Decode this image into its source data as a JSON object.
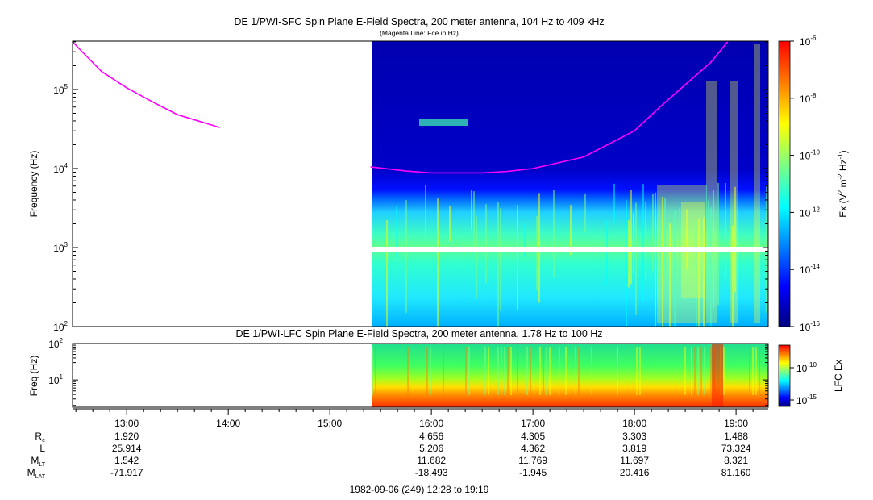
{
  "top_panel": {
    "title": "DE 1/PWI-SFC  Spin Plane E-Field Spectra, 200 meter antenna, 104 Hz to 409 kHz",
    "subtitle": "(Magenta Line: Fce in Hz)",
    "ylabel": "Frequency (Hz)",
    "yticks": [
      {
        "base": "10",
        "exp": "2"
      },
      {
        "base": "10",
        "exp": "3"
      },
      {
        "base": "10",
        "exp": "4"
      },
      {
        "base": "10",
        "exp": "5"
      }
    ],
    "colorbar": {
      "label_prefix": "Ex (V",
      "label_exp1": "2",
      "label_mid": " m",
      "label_exp2": "-2",
      "label_mid2": " Hz",
      "label_exp3": "-1",
      "label_suffix": ")",
      "ticks": [
        {
          "base": "10",
          "exp": "-6"
        },
        {
          "base": "10",
          "exp": "-8"
        },
        {
          "base": "10",
          "exp": "-10"
        },
        {
          "base": "10",
          "exp": "-12"
        },
        {
          "base": "10",
          "exp": "-14"
        },
        {
          "base": "10",
          "exp": "-16"
        }
      ]
    }
  },
  "bottom_panel": {
    "title": "DE 1/PWI-LFC  Spin Plane E-Field Spectra, 200 meter antenna, 1.78 Hz to 100 Hz",
    "ylabel": "Freq (Hz)",
    "yticks": [
      {
        "base": "10",
        "exp": "1"
      },
      {
        "base": "10",
        "exp": "2"
      }
    ],
    "colorbar": {
      "label": "LFC Ex",
      "ticks": [
        {
          "base": "10",
          "exp": "-10"
        },
        {
          "base": "10",
          "exp": "-15"
        }
      ]
    }
  },
  "time_axis": {
    "labels": [
      "13:00",
      "14:00",
      "15:00",
      "16:00",
      "17:00",
      "18:00",
      "19:00"
    ]
  },
  "ephemeris": {
    "rows": [
      {
        "name": "R",
        "sub": "e",
        "values": [
          "1.920",
          "",
          "",
          "4.656",
          "4.305",
          "3.303",
          "1.488"
        ]
      },
      {
        "name": "L",
        "sub": "",
        "values": [
          "25.914",
          "",
          "",
          "5.206",
          "4.362",
          "3.819",
          "73.324"
        ]
      },
      {
        "name": "M",
        "sub": "LT",
        "values": [
          "1.542",
          "",
          "",
          "11.682",
          "11.769",
          "11.697",
          "8.321"
        ]
      },
      {
        "name": "M",
        "sub": "LAT",
        "values": [
          "-71.917",
          "",
          "",
          "-18.493",
          "-1.945",
          "20.416",
          "81.160"
        ]
      }
    ]
  },
  "footer": "1982-09-06 (249) 12:28 to 19:19",
  "colors": {
    "fce_line": "#ff00ff",
    "colormap": [
      "#00007f",
      "#0000ff",
      "#0080ff",
      "#00ffff",
      "#80ff80",
      "#ffff00",
      "#ff8000",
      "#ff0000"
    ]
  },
  "chart_data": [
    {
      "type": "heatmap",
      "title": "DE 1/PWI-SFC  Spin Plane E-Field Spectra, 200 meter antenna, 104 Hz to 409 kHz",
      "subtitle": "(Magenta Line: Fce in Hz)",
      "xlabel": "",
      "ylabel": "Frequency (Hz)",
      "y_scale": "log",
      "ylim": [
        100,
        409000
      ],
      "xlim": [
        "12:28",
        "19:19"
      ],
      "data_start": "15:24",
      "zlabel": "Ex (V^2 m^-2 Hz^-1)",
      "z_scale": "log",
      "zlim": [
        1e-16,
        1e-06
      ],
      "series": [
        {
          "name": "Fce",
          "times": [
            "12:28",
            "12:45",
            "13:00",
            "13:15",
            "13:30",
            "13:55",
            "15:24",
            "15:45",
            "16:00",
            "16:30",
            "16:45",
            "17:00",
            "17:30",
            "18:00",
            "18:15",
            "18:30",
            "18:45",
            "18:55"
          ],
          "values": [
            400000,
            170000,
            105000,
            70000,
            48000,
            33000,
            10500,
            9300,
            8800,
            8800,
            9200,
            10000,
            14000,
            30000,
            60000,
            115000,
            220000,
            400000
          ]
        }
      ]
    },
    {
      "type": "heatmap",
      "title": "DE 1/PWI-LFC  Spin Plane E-Field Spectra, 200 meter antenna, 1.78 Hz to 100 Hz",
      "xlabel": "",
      "ylabel": "Freq (Hz)",
      "y_scale": "log",
      "ylim": [
        1.78,
        100
      ],
      "xlim": [
        "12:28",
        "19:19"
      ],
      "data_start": "15:24",
      "zlabel": "LFC Ex",
      "z_scale": "log",
      "zlim": [
        1e-17,
        1e-08
      ]
    }
  ]
}
